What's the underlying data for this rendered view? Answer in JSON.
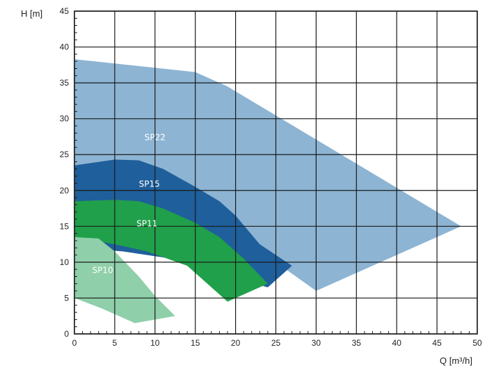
{
  "chart_data": {
    "type": "area",
    "xlabel": "Q [m³/h]",
    "ylabel": "H [m]",
    "xlim": [
      0,
      50
    ],
    "ylim": [
      0,
      45
    ],
    "x_ticks": [
      0,
      5,
      10,
      15,
      20,
      25,
      30,
      35,
      40,
      45,
      50
    ],
    "y_ticks": [
      0,
      5,
      10,
      15,
      20,
      25,
      30,
      35,
      40,
      45
    ],
    "grid": true,
    "series": [
      {
        "name": "SP22",
        "color": "#8db4d3",
        "label_at": [
          10,
          27
        ],
        "polygon": [
          [
            0,
            38.3
          ],
          [
            15,
            36.5
          ],
          [
            19,
            34.5
          ],
          [
            48,
            15
          ],
          [
            30,
            6
          ],
          [
            20,
            14
          ],
          [
            13,
            17
          ],
          [
            0,
            17.5
          ]
        ]
      },
      {
        "name": "SP15",
        "color": "#1f5f9b",
        "label_at": [
          9.3,
          20.5
        ],
        "polygon": [
          [
            0,
            23.5
          ],
          [
            5,
            24.3
          ],
          [
            8,
            24.2
          ],
          [
            11,
            23
          ],
          [
            15,
            20.5
          ],
          [
            18,
            18.5
          ],
          [
            20,
            16.5
          ],
          [
            23,
            12.5
          ],
          [
            27,
            9.5
          ],
          [
            24,
            6.5
          ],
          [
            19,
            8
          ],
          [
            12,
            10.5
          ],
          [
            6,
            11.5
          ],
          [
            0,
            12
          ]
        ]
      },
      {
        "name": "SP11",
        "color": "#20a04a",
        "label_at": [
          9,
          15
        ],
        "polygon": [
          [
            0,
            18.5
          ],
          [
            5,
            18.7
          ],
          [
            8,
            18.5
          ],
          [
            11,
            17.5
          ],
          [
            15,
            15.5
          ],
          [
            18,
            13.5
          ],
          [
            21,
            10.5
          ],
          [
            24,
            7
          ],
          [
            19,
            4.5
          ],
          [
            14,
            9.5
          ],
          [
            9,
            11.5
          ],
          [
            5,
            12.5
          ],
          [
            0,
            13.5
          ]
        ]
      },
      {
        "name": "SP10",
        "color": "#8fcfa9",
        "label_at": [
          3.5,
          8.5
        ],
        "polygon": [
          [
            0,
            13.5
          ],
          [
            3,
            13.3
          ],
          [
            5,
            11.5
          ],
          [
            8,
            8
          ],
          [
            10,
            5.3
          ],
          [
            12.5,
            2.5
          ],
          [
            7.5,
            1.5
          ],
          [
            3.5,
            3.5
          ],
          [
            0,
            5
          ]
        ]
      }
    ]
  }
}
